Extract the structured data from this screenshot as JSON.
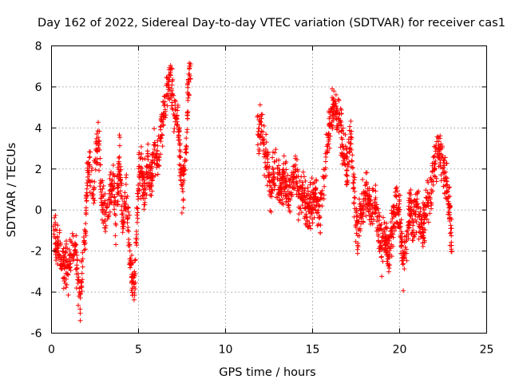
{
  "chart_data": {
    "type": "scatter",
    "title": "Day 162 of 2022, Sidereal Day-to-day VTEC variation (SDTVAR) for receiver cas1",
    "xlabel": "GPS time / hours",
    "ylabel": "SDTVAR / TECUs",
    "xlim": [
      0,
      25
    ],
    "ylim": [
      -6,
      8
    ],
    "xticks": [
      0,
      5,
      10,
      15,
      20,
      25
    ],
    "yticks": [
      -6,
      -4,
      -2,
      0,
      2,
      4,
      6,
      8
    ],
    "grid": true,
    "marker": "+",
    "color": "#ff0000",
    "trend": {
      "segment_1": {
        "x": [
          0.1,
          0.3,
          0.5,
          0.7,
          0.9,
          1.1,
          1.3,
          1.5,
          1.65,
          1.8,
          1.95,
          2.05,
          2.2,
          2.4,
          2.55,
          2.7,
          2.85,
          3.0,
          3.15,
          3.3,
          3.5,
          3.7,
          3.9,
          4.1,
          4.3,
          4.5,
          4.65,
          4.8,
          5.0,
          5.15,
          5.3,
          5.5,
          5.7,
          5.9,
          6.1,
          6.3,
          6.5,
          6.7,
          6.85,
          7.0,
          7.15,
          7.3,
          7.5,
          7.7,
          7.85,
          8.0
        ],
        "y": [
          -1.0,
          -1.5,
          -2.0,
          -2.6,
          -3.0,
          -2.2,
          -1.5,
          -3.0,
          -4.5,
          -2.5,
          -1.0,
          1.5,
          2.0,
          0.5,
          2.8,
          3.8,
          1.0,
          0.0,
          -0.5,
          0.5,
          1.5,
          -0.5,
          2.5,
          -0.5,
          0.5,
          -2.0,
          -3.8,
          -3.5,
          1.5,
          2.0,
          1.0,
          2.0,
          1.5,
          3.0,
          2.5,
          4.0,
          5.0,
          6.0,
          6.6,
          5.0,
          4.5,
          4.0,
          1.0,
          2.0,
          6.0,
          7.0
        ]
      },
      "segment_2": {
        "x": [
          11.8,
          12.0,
          12.2,
          12.4,
          12.6,
          12.8,
          13.0,
          13.2,
          13.4,
          13.6,
          13.8,
          14.0,
          14.2,
          14.4,
          14.6,
          14.8,
          15.0,
          15.2,
          15.4,
          15.6,
          15.8,
          16.0,
          16.2,
          16.4,
          16.6,
          16.8,
          17.0,
          17.2,
          17.4,
          17.6,
          17.8,
          18.0,
          18.2,
          18.4,
          18.6,
          18.8,
          19.0,
          19.2,
          19.4,
          19.6,
          19.8,
          20.0,
          20.2,
          20.4,
          20.6,
          20.8,
          21.0,
          21.2,
          21.4,
          21.6,
          21.8,
          22.0,
          22.2,
          22.4,
          22.6,
          22.8,
          23.0
        ],
        "y": [
          3.5,
          4.0,
          3.2,
          2.5,
          1.0,
          2.0,
          1.5,
          0.8,
          1.5,
          0.5,
          1.0,
          2.0,
          0.5,
          0.8,
          0.2,
          0.0,
          0.5,
          0.8,
          0.0,
          1.0,
          2.5,
          4.0,
          5.2,
          4.8,
          4.0,
          2.5,
          2.2,
          3.5,
          0.5,
          -1.2,
          0.0,
          1.0,
          0.5,
          -0.3,
          0.2,
          -0.8,
          -1.8,
          -1.2,
          -2.2,
          -0.5,
          0.2,
          -0.3,
          -2.5,
          -2.0,
          0.0,
          -0.5,
          0.5,
          -1.0,
          -0.5,
          0.5,
          1.0,
          2.0,
          3.0,
          2.5,
          1.5,
          0.5,
          -1.5
        ]
      }
    }
  }
}
